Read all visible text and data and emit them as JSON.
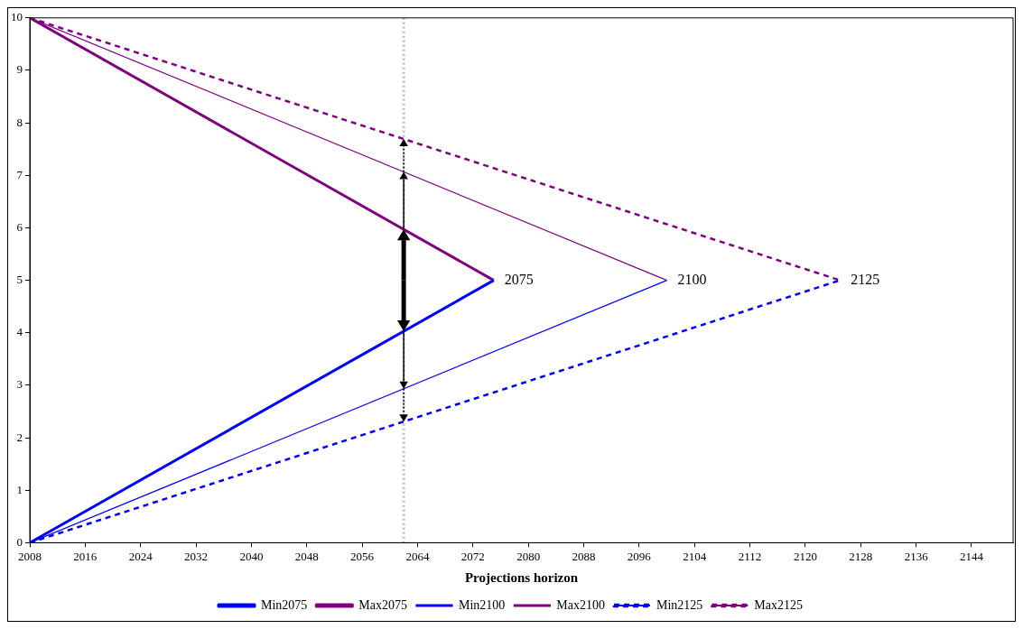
{
  "chart_data": {
    "type": "line",
    "xlabel": "Projections horizon",
    "xlim": [
      2008,
      2150
    ],
    "xticks": [
      2008,
      2016,
      2024,
      2032,
      2040,
      2048,
      2056,
      2064,
      2072,
      2080,
      2088,
      2096,
      2104,
      2112,
      2120,
      2128,
      2136,
      2144
    ],
    "ylim": [
      0,
      10
    ],
    "yticks": [
      0,
      1,
      2,
      3,
      4,
      5,
      6,
      7,
      8,
      9,
      10
    ],
    "grid": false,
    "legend": "bottom",
    "marker": "none",
    "series": [
      {
        "name": "Min2075",
        "color": "#0000ff",
        "x": [
          2008,
          2075
        ],
        "values": [
          0,
          5
        ],
        "line_style": "solid"
      },
      {
        "name": "Max2075",
        "color": "#800080",
        "x": [
          2008,
          2075
        ],
        "values": [
          10,
          5
        ],
        "line_style": "solid"
      },
      {
        "name": "Min2100",
        "color": "#0000ff",
        "x": [
          2008,
          2100
        ],
        "values": [
          0,
          5
        ],
        "line_style": "solid"
      },
      {
        "name": "Max2100",
        "color": "#800080",
        "x": [
          2008,
          2100
        ],
        "values": [
          10,
          5
        ],
        "line_style": "solid"
      },
      {
        "name": "Min2125",
        "color": "#0000ff",
        "x": [
          2008,
          2125
        ],
        "values": [
          0,
          5
        ],
        "line_style": "dashed"
      },
      {
        "name": "Max2125",
        "color": "#800080",
        "x": [
          2008,
          2125
        ],
        "values": [
          10,
          5
        ],
        "line_style": "dashed"
      }
    ],
    "ref_lines": [
      {
        "axis": "x",
        "value": 2062,
        "color": "#bfbfbf",
        "line_style": "dotted"
      }
    ],
    "annotations": [
      {
        "text": "2075",
        "x": 2075,
        "y": 5
      },
      {
        "text": "2100",
        "x": 2100,
        "y": 5
      },
      {
        "text": "2125",
        "x": 2125,
        "y": 5
      }
    ]
  }
}
